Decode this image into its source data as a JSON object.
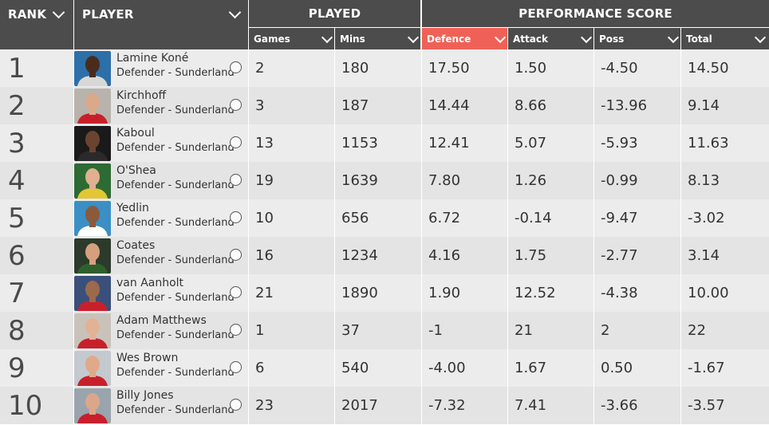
{
  "header": {
    "rank_label": "RANK",
    "player_label": "PLAYER",
    "played_label": "PLAYED",
    "performance_label": "PERFORMANCE SCORE",
    "columns": {
      "games": "Games",
      "mins": "Mins",
      "defence": "Defence",
      "attack": "Attack",
      "poss": "Poss",
      "total": "Total"
    },
    "active_column": "Defence",
    "header_color": "#4c4c4c",
    "active_color": "#ef6157"
  },
  "rows": [
    {
      "rank": "1",
      "name": "Lamine Koné",
      "team": "Defender - Sunderland",
      "games": "2",
      "mins": "180",
      "defence": "17.50",
      "attack": "1.50",
      "poss": "-4.50",
      "total": "14.50",
      "photo": {
        "bg": "#2d6fa8",
        "skin": "#4a2c1e",
        "shirt": "#d8d8d8"
      }
    },
    {
      "rank": "2",
      "name": "Kirchhoff",
      "team": "Defender - Sunderland",
      "games": "3",
      "mins": "187",
      "defence": "14.44",
      "attack": "8.66",
      "poss": "-13.96",
      "total": "9.14",
      "photo": {
        "bg": "#b8b3ad",
        "skin": "#d9a98a",
        "shirt": "#c8202b"
      }
    },
    {
      "rank": "3",
      "name": "Kaboul",
      "team": "Defender - Sunderland",
      "games": "13",
      "mins": "1153",
      "defence": "12.41",
      "attack": "5.07",
      "poss": "-5.93",
      "total": "11.63",
      "photo": {
        "bg": "#1a1a1a",
        "skin": "#6b4430",
        "shirt": "#2a2a2a"
      }
    },
    {
      "rank": "4",
      "name": "O'Shea",
      "team": "Defender - Sunderland",
      "games": "19",
      "mins": "1639",
      "defence": "7.80",
      "attack": "1.26",
      "poss": "-0.99",
      "total": "8.13",
      "photo": {
        "bg": "#2d6a34",
        "skin": "#e0b090",
        "shirt": "#e3c632"
      }
    },
    {
      "rank": "5",
      "name": "Yedlin",
      "team": "Defender - Sunderland",
      "games": "10",
      "mins": "656",
      "defence": "6.72",
      "attack": "-0.14",
      "poss": "-9.47",
      "total": "-3.02",
      "photo": {
        "bg": "#3b8fc4",
        "skin": "#8a5a3c",
        "shirt": "#ffffff"
      }
    },
    {
      "rank": "6",
      "name": "Coates",
      "team": "Defender - Sunderland",
      "games": "16",
      "mins": "1234",
      "defence": "4.16",
      "attack": "1.75",
      "poss": "-2.77",
      "total": "3.14",
      "photo": {
        "bg": "#2b3a2a",
        "skin": "#d6a07f",
        "shirt": "#2f5f2b"
      }
    },
    {
      "rank": "7",
      "name": "van Aanholt",
      "team": "Defender - Sunderland",
      "games": "21",
      "mins": "1890",
      "defence": "1.90",
      "attack": "12.52",
      "poss": "-4.38",
      "total": "10.00",
      "photo": {
        "bg": "#3a4f7a",
        "skin": "#9b6a4a",
        "shirt": "#c8202b"
      }
    },
    {
      "rank": "8",
      "name": "Adam Matthews",
      "team": "Defender - Sunderland",
      "games": "1",
      "mins": "37",
      "defence": "-1",
      "attack": "21",
      "poss": "2",
      "total": "22",
      "photo": {
        "bg": "#c9c2ba",
        "skin": "#e2b295",
        "shirt": "#c8202b"
      }
    },
    {
      "rank": "9",
      "name": "Wes Brown",
      "team": "Defender - Sunderland",
      "games": "6",
      "mins": "540",
      "defence": "-4.00",
      "attack": "1.67",
      "poss": "0.50",
      "total": "-1.67",
      "photo": {
        "bg": "#c4c9cf",
        "skin": "#e0a98a",
        "shirt": "#c8202b"
      }
    },
    {
      "rank": "10",
      "name": "Billy Jones",
      "team": "Defender - Sunderland",
      "games": "23",
      "mins": "2017",
      "defence": "-7.32",
      "attack": "7.41",
      "poss": "-3.66",
      "total": "-3.57",
      "photo": {
        "bg": "#9aa4ad",
        "skin": "#dca68a",
        "shirt": "#c8202b"
      }
    }
  ]
}
